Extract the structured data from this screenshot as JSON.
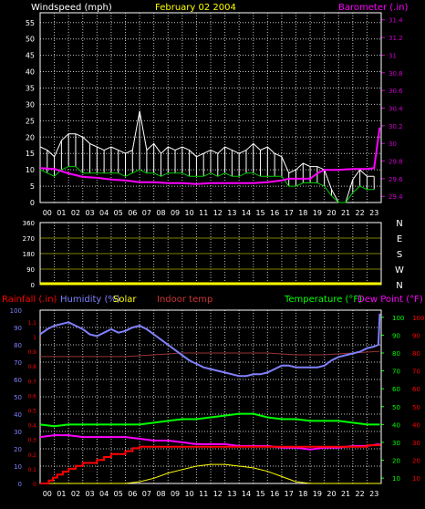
{
  "colors": {
    "background": "#000000",
    "grid": "#bfbfbf",
    "wind_white": "#ffffff",
    "wind_green": "#00cc00",
    "barometer": "#ff00ff",
    "baro_axis": "#cc00cc",
    "date": "#ffff00",
    "direction": "#ffff00",
    "rainfall": "#ff0000",
    "humidity": "#8080ff",
    "solar": "#ffff00",
    "indoor": "#993333",
    "temperature": "#00ff00",
    "dewpoint": "#ff00ff"
  },
  "chart_data": [
    {
      "type": "line",
      "panel": "wind-barometer",
      "title": "Windspeed (mph)",
      "date_label": "February 02 2004",
      "right_title": "Barometer (.in)",
      "x_ticks": [
        "00",
        "01",
        "02",
        "03",
        "04",
        "05",
        "06",
        "07",
        "08",
        "09",
        "10",
        "11",
        "12",
        "13",
        "14",
        "15",
        "16",
        "17",
        "18",
        "19",
        "20",
        "21",
        "22",
        "23"
      ],
      "x_range": [
        0,
        24
      ],
      "y_ticks": [
        "0",
        "5",
        "10",
        "15",
        "20",
        "25",
        "30",
        "35",
        "40",
        "45",
        "50",
        "55"
      ],
      "ylim": [
        0,
        58
      ],
      "y2_ticks": [
        "29.4",
        "29.6",
        "29.8",
        "30",
        "30.2",
        "30.4",
        "30.6",
        "30.8",
        "31",
        "31.2",
        "31.4"
      ],
      "y2lim": [
        29.33,
        31.48
      ],
      "series": [
        {
          "x": [
            0,
            0.5,
            1,
            1.5,
            2,
            2.5,
            3,
            3.5,
            4,
            4.5,
            5,
            5.5,
            6,
            6.5,
            7,
            7.5,
            8,
            8.5,
            9,
            9.5,
            10,
            10.5,
            11,
            11.5,
            12,
            12.5,
            13,
            13.5,
            14,
            14.5,
            15,
            15.5,
            16,
            16.5,
            17,
            17.5,
            18,
            18.5,
            19,
            19.5,
            20,
            20.5,
            21,
            21.5,
            22,
            22.5,
            23,
            23.5
          ],
          "gust_max": [
            17,
            16,
            14,
            19,
            21,
            21,
            20,
            18,
            17,
            16,
            17,
            16,
            15,
            16,
            28,
            16,
            18,
            15,
            17,
            16,
            17,
            16,
            14,
            15,
            16,
            15,
            17,
            16,
            15,
            16,
            18,
            16,
            17,
            15,
            14,
            9,
            10,
            12,
            11,
            11,
            10,
            4,
            0,
            0,
            7,
            10,
            8,
            8
          ],
          "avg": [
            10,
            9,
            8,
            10,
            11,
            11,
            9,
            9,
            9,
            9,
            9,
            9,
            8,
            9,
            10,
            9,
            9,
            8,
            9,
            9,
            9,
            8,
            8,
            8,
            9,
            8,
            9,
            8,
            8,
            9,
            9,
            8,
            8,
            8,
            8,
            5,
            5,
            6,
            6,
            6,
            5,
            2,
            0,
            0,
            3,
            5,
            4,
            4
          ]
        },
        {
          "x": [
            0,
            1,
            2,
            3,
            4,
            5,
            6,
            7,
            8,
            9,
            10,
            11,
            12,
            13,
            14,
            15,
            16,
            17,
            17.5,
            18,
            19,
            19.5,
            20,
            21,
            22,
            23,
            23.5,
            23.9
          ],
          "values": [
            29.72,
            29.71,
            29.66,
            29.62,
            29.61,
            29.59,
            29.58,
            29.56,
            29.56,
            29.55,
            29.55,
            29.54,
            29.55,
            29.55,
            29.55,
            29.55,
            29.56,
            29.58,
            29.6,
            29.6,
            29.6,
            29.66,
            29.7,
            29.7,
            29.71,
            29.71,
            29.72,
            30.18
          ]
        }
      ]
    },
    {
      "type": "scatter",
      "panel": "wind-direction",
      "y_ticks": [
        "0",
        "90",
        "180",
        "270",
        "360"
      ],
      "ylim": [
        0,
        360
      ],
      "right_labels": [
        "N",
        "W",
        "S",
        "E",
        "N"
      ],
      "x_range": [
        0,
        24
      ],
      "series": [
        {
          "x": [
            0,
            24
          ],
          "values": [
            0,
            0
          ]
        }
      ]
    },
    {
      "type": "line",
      "panel": "humidity-temperature",
      "labels": {
        "rainfall": "Rainfall (.in)",
        "humidity": "Humidity (%)",
        "solar": "Solar",
        "indoor": "Indoor temp",
        "temperature": "Temperature (°F)",
        "dewpoint": "Dew Point (°F)"
      },
      "x_ticks": [
        "00",
        "01",
        "02",
        "03",
        "04",
        "05",
        "06",
        "07",
        "08",
        "09",
        "10",
        "11",
        "12",
        "13",
        "14",
        "15",
        "16",
        "17",
        "18",
        "19",
        "20",
        "21",
        "22",
        "23"
      ],
      "x_range": [
        0,
        24
      ],
      "rain_ticks": [
        "0",
        "0.1",
        "0.2",
        "0.3",
        "0.4",
        "0.5",
        "0.6",
        "0.7",
        "0.8",
        "0.9",
        "1",
        "1.1"
      ],
      "rain_lim": [
        0,
        1.18
      ],
      "humidity_ticks": [
        "0",
        "10",
        "20",
        "30",
        "40",
        "50",
        "60",
        "70",
        "80",
        "90",
        "100"
      ],
      "humidity_lim": [
        0,
        100
      ],
      "temp_ticks": [
        "10",
        "20",
        "30",
        "40",
        "50",
        "60",
        "70",
        "80",
        "90",
        "100"
      ],
      "temp_lim": [
        7,
        104
      ],
      "series": [
        {
          "name": "Humidity (%)",
          "x": [
            0,
            0.5,
            1,
            1.5,
            2,
            2.5,
            3,
            3.5,
            4,
            4.5,
            5,
            5.5,
            6,
            6.5,
            7,
            7.5,
            8,
            8.5,
            9,
            9.5,
            10,
            10.5,
            11,
            11.5,
            12,
            12.5,
            13,
            13.5,
            14,
            14.5,
            15,
            15.5,
            16,
            16.5,
            17,
            17.5,
            18,
            18.5,
            19,
            19.5,
            20,
            20.5,
            21,
            21.5,
            22,
            22.5,
            23,
            23.5,
            23.8,
            23.9
          ],
          "values": [
            86,
            89,
            91,
            92,
            93,
            91,
            89,
            86,
            85,
            87,
            89,
            87,
            88,
            90,
            91,
            89,
            86,
            83,
            80,
            77,
            74,
            71,
            69,
            67,
            66,
            65,
            64,
            63,
            62,
            62,
            63,
            63,
            64,
            66,
            68,
            68,
            67,
            67,
            67,
            67,
            68,
            71,
            73,
            74,
            75,
            76,
            78,
            79,
            80,
            98
          ]
        },
        {
          "name": "Rainfall (.in)",
          "x": [
            0,
            0.5,
            0.6,
            0.9,
            1.2,
            1.6,
            2,
            2.5,
            3,
            3.5,
            4,
            4.5,
            5,
            5.5,
            6,
            6.5,
            7,
            8,
            10,
            12,
            14,
            16,
            18,
            20,
            22,
            23,
            23.9
          ],
          "values": [
            0,
            0,
            0.02,
            0.04,
            0.06,
            0.08,
            0.1,
            0.12,
            0.14,
            0.14,
            0.16,
            0.18,
            0.2,
            0.2,
            0.22,
            0.24,
            0.25,
            0.25,
            0.25,
            0.25,
            0.25,
            0.25,
            0.25,
            0.25,
            0.25,
            0.26,
            0.27
          ]
        },
        {
          "name": "Temperature (°F)",
          "x": [
            0,
            1,
            2,
            3,
            4,
            5,
            6,
            7,
            8,
            9,
            10,
            11,
            12,
            13,
            14,
            15,
            16,
            17,
            18,
            19,
            20,
            21,
            22,
            23,
            23.9
          ],
          "values": [
            40,
            39,
            40,
            40,
            40,
            40,
            40,
            40,
            41,
            42,
            43,
            43,
            44,
            45,
            46,
            46,
            44,
            43,
            43,
            42,
            42,
            42,
            41,
            40,
            40
          ]
        },
        {
          "name": "Dew Point (°F)",
          "x": [
            0,
            1,
            2,
            3,
            4,
            5,
            6,
            7,
            8,
            9,
            10,
            11,
            12,
            13,
            14,
            15,
            16,
            17,
            18,
            19,
            20,
            21,
            22,
            23,
            23.9
          ],
          "values": [
            33,
            34,
            34,
            33,
            33,
            33,
            33,
            32,
            31,
            31,
            30,
            29,
            29,
            29,
            28,
            28,
            28,
            27,
            27,
            26,
            27,
            27,
            28,
            28,
            29
          ]
        },
        {
          "name": "Indoor temp",
          "x": [
            0,
            2,
            4,
            6,
            8,
            10,
            12,
            14,
            16,
            18,
            20,
            22,
            23.9
          ],
          "values": [
            78,
            78,
            78,
            78,
            79,
            80,
            80,
            80,
            80,
            79,
            79,
            80,
            81
          ]
        },
        {
          "name": "Solar",
          "x": [
            0,
            6,
            7,
            8,
            9,
            10,
            11,
            12,
            13,
            14,
            15,
            16,
            17,
            18,
            19,
            24
          ],
          "values": [
            0,
            0,
            1,
            3,
            6,
            8,
            10,
            11,
            11,
            10,
            9,
            7,
            4,
            1,
            0,
            0
          ]
        }
      ]
    }
  ]
}
